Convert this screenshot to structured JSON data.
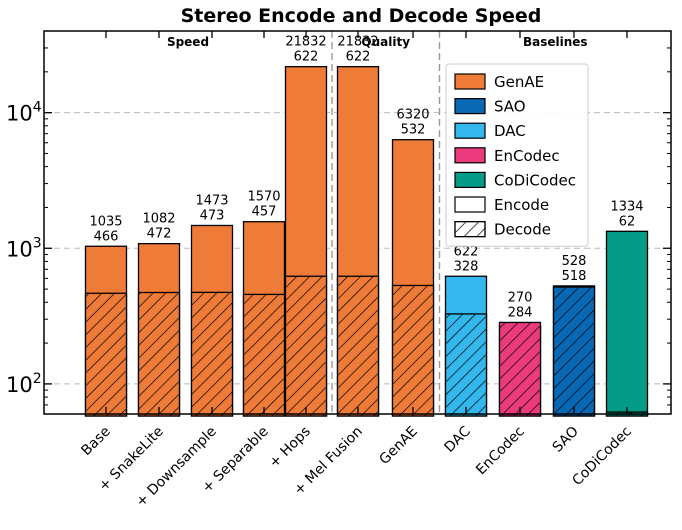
{
  "chart_data": {
    "type": "bar",
    "title": "Stereo Encode and Decode Speed",
    "yscale": "log",
    "ylim": [
      60,
      40000
    ],
    "ytick_labels": [
      "10",
      "10",
      "10"
    ],
    "ytick_exponents": [
      "2",
      "3",
      "4"
    ],
    "ytick_values": [
      100,
      1000,
      10000
    ],
    "sections": [
      {
        "label": "Speed",
        "from": 0,
        "to": 4
      },
      {
        "label": "Quality",
        "from": 5,
        "to": 6
      },
      {
        "label": "Baselines",
        "from": 7,
        "to": 10
      }
    ],
    "categories": [
      "Base",
      "+ SnakeLite",
      "+ Downsample",
      "+ Separable",
      "+ Hops",
      "+ Mel Fusion",
      "GenAE",
      "DAC",
      "EnCodec",
      "SAO",
      "CoDiCodec"
    ],
    "series": [
      {
        "name": "Encode",
        "values": [
          1035,
          1082,
          1473,
          1570,
          21832,
          21832,
          6320,
          622,
          270,
          528,
          1334
        ]
      },
      {
        "name": "Decode",
        "values": [
          466,
          472,
          473,
          457,
          622,
          622,
          532,
          328,
          284,
          518,
          62
        ]
      }
    ],
    "bar_models": [
      "GenAE",
      "GenAE",
      "GenAE",
      "GenAE",
      "GenAE",
      "GenAE",
      "GenAE",
      "DAC",
      "EnCodec",
      "SAO",
      "CoDiCodec"
    ],
    "model_colors": {
      "GenAE": "#ee7b38",
      "SAO": "#0868b4",
      "DAC": "#33b7ec",
      "EnCodec": "#ec3b7c",
      "CoDiCodec": "#039a88"
    },
    "legend": {
      "position": "upper-right",
      "entries": [
        {
          "label": "GenAE",
          "color": "#ee7b38",
          "style": "solid"
        },
        {
          "label": "SAO",
          "color": "#0868b4",
          "style": "solid"
        },
        {
          "label": "DAC",
          "color": "#33b7ec",
          "style": "solid"
        },
        {
          "label": "EnCodec",
          "color": "#ec3b7c",
          "style": "solid"
        },
        {
          "label": "CoDiCodec",
          "color": "#039a88",
          "style": "solid"
        },
        {
          "label": "Encode",
          "color": "#ffffff",
          "style": "outline"
        },
        {
          "label": "Decode",
          "color": "#ffffff",
          "style": "hatch"
        }
      ]
    },
    "grid": "horizontal-dashed"
  }
}
